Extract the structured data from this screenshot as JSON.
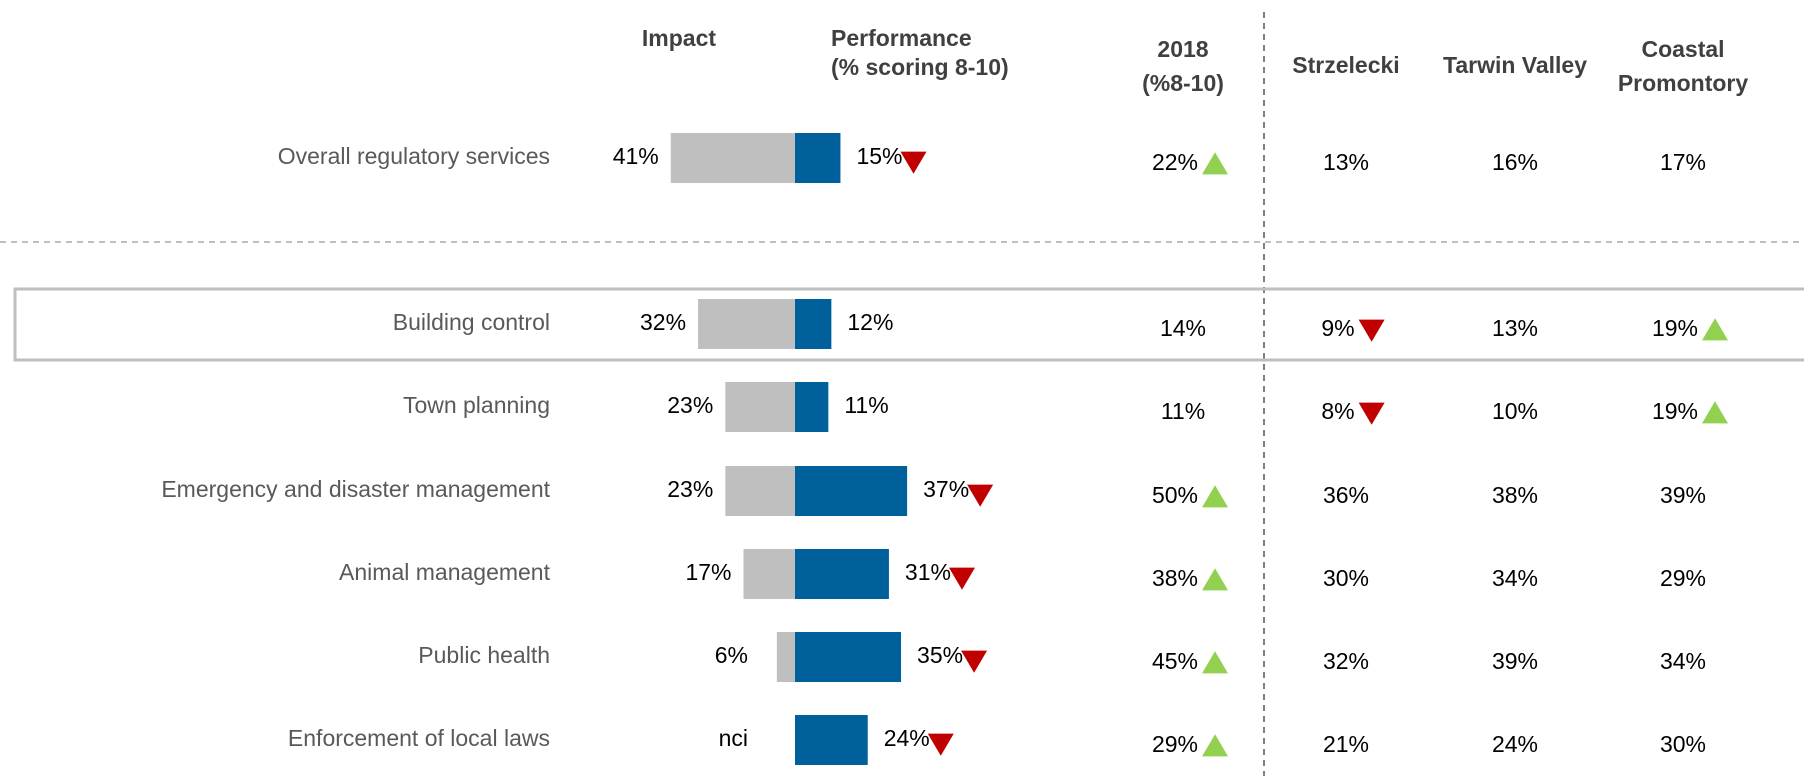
{
  "chart_data": {
    "type": "bar",
    "categories": [
      "Overall regulatory services",
      "Building control",
      "Town planning",
      "Emergency and disaster management",
      "Animal management",
      "Public health",
      "Enforcement of local laws"
    ],
    "series": [
      {
        "name": "Impact",
        "color": "#bfbfbf",
        "values": [
          41,
          32,
          23,
          23,
          17,
          6,
          null
        ],
        "value_labels": [
          "41%",
          "32%",
          "23%",
          "23%",
          "17%",
          "6%",
          "nci"
        ]
      },
      {
        "name": "Performance",
        "color": "#00609c",
        "values": [
          15,
          12,
          11,
          37,
          31,
          35,
          24
        ],
        "value_labels": [
          "15%",
          "12%",
          "11%",
          "37%",
          "31%",
          "35%",
          "24%"
        ],
        "trend": [
          "down",
          null,
          null,
          "down",
          "down",
          "down",
          "down"
        ]
      }
    ],
    "performance_note": "(% scoring 8-10)",
    "highlight_row": 1,
    "trend_colors": {
      "up": "#92d050",
      "down": "#c00000"
    }
  },
  "table": {
    "columns": [
      [
        "2018",
        "(%8-10)"
      ],
      [
        "Strzelecki"
      ],
      [
        "Tarwin Valley"
      ],
      [
        "Coastal",
        "Promontory"
      ]
    ],
    "rows": [
      [
        "22%",
        "13%",
        "16%",
        "17%"
      ],
      [
        "14%",
        "9%",
        "13%",
        "19%"
      ],
      [
        "11%",
        "8%",
        "10%",
        "19%"
      ],
      [
        "50%",
        "36%",
        "38%",
        "39%"
      ],
      [
        "38%",
        "30%",
        "34%",
        "29%"
      ],
      [
        "45%",
        "32%",
        "39%",
        "34%"
      ],
      [
        "29%",
        "21%",
        "24%",
        "30%"
      ]
    ],
    "trends": [
      [
        "up",
        null,
        null,
        null
      ],
      [
        null,
        "down",
        null,
        "up"
      ],
      [
        null,
        "down",
        null,
        "up"
      ],
      [
        "up",
        null,
        null,
        null
      ],
      [
        "up",
        null,
        null,
        null
      ],
      [
        "up",
        null,
        null,
        null
      ],
      [
        "up",
        null,
        null,
        null
      ]
    ]
  }
}
